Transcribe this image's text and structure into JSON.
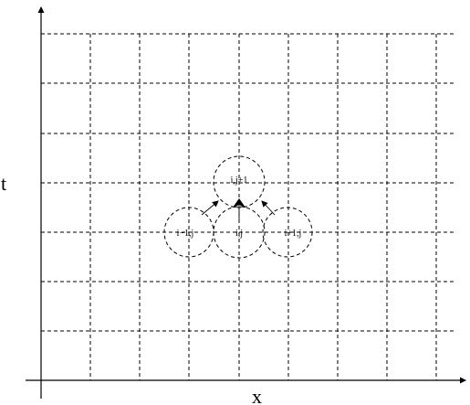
{
  "axes": {
    "x_label": "x",
    "y_label": "t"
  },
  "stencil": {
    "top_node": "i,j+1",
    "left_node": "i−1,j",
    "center_node": "i,j",
    "right_node": "i+1,j"
  }
}
